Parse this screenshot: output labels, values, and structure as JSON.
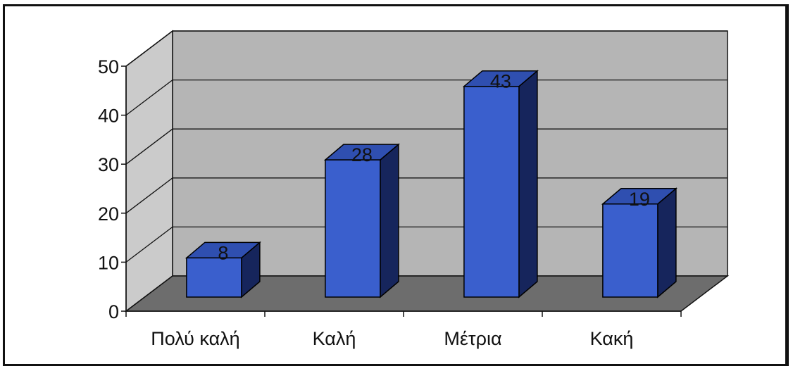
{
  "chart_data": {
    "type": "bar",
    "style": "3d-column",
    "categories": [
      "Πολύ καλή",
      "Καλή",
      "Μέτρια",
      "Κακή"
    ],
    "values": [
      8,
      28,
      43,
      19
    ],
    "data_labels": [
      "8",
      "28",
      "43",
      "19"
    ],
    "title": "",
    "xlabel": "",
    "ylabel": "",
    "ylim": [
      0,
      50
    ],
    "yticks": [
      "0",
      "10",
      "20",
      "30",
      "40",
      "50"
    ],
    "grid": true,
    "legend": "none",
    "colors": {
      "bar_front": "#3a5fcd",
      "bar_top": "#2f4fb0",
      "bar_side": "#16255c",
      "back_wall": "#b5b5b5",
      "side_wall": "#cbcbcb",
      "floor": "#6d6d6d",
      "gridline": "#111111"
    }
  }
}
